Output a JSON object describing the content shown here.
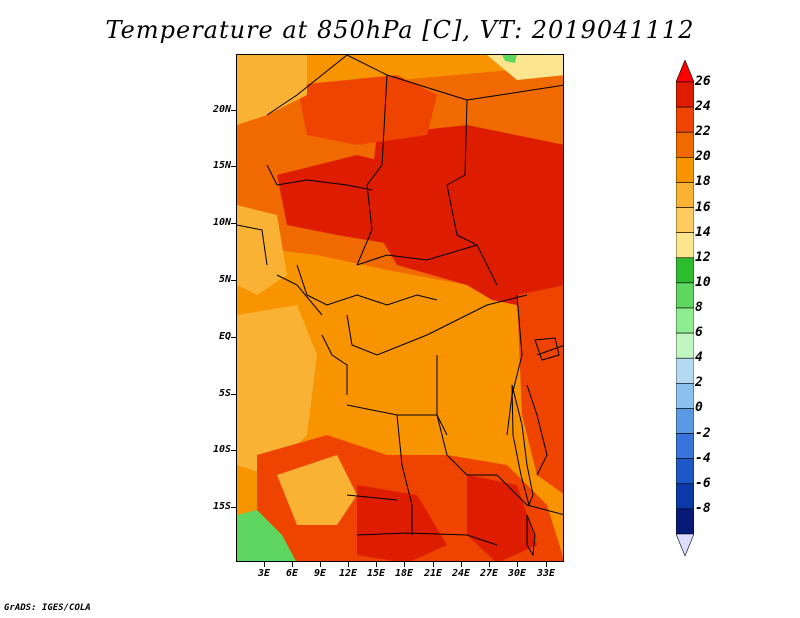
{
  "title": "Temperature at 850hPa [C], VT: 2019041112",
  "credit": "GrADS: IGES/COLA",
  "latitude_labels": [
    "20N",
    "15N",
    "10N",
    "5N",
    "EQ",
    "5S",
    "10S",
    "15S"
  ],
  "longitude_labels": [
    "3E",
    "6E",
    "9E",
    "12E",
    "15E",
    "18E",
    "21E",
    "24E",
    "27E",
    "30E",
    "33E"
  ],
  "colorbar": {
    "labels": [
      "26",
      "24",
      "22",
      "20",
      "18",
      "16",
      "14",
      "12",
      "10",
      "8",
      "6",
      "4",
      "2",
      "0",
      "-2",
      "-4",
      "-6",
      "-8"
    ],
    "colors": [
      "#ff0000",
      "#dd1c00",
      "#ee4400",
      "#f06a00",
      "#f79400",
      "#fab234",
      "#fccc60",
      "#fde590",
      "#2dbc2d",
      "#5fd65f",
      "#90ec90",
      "#c0f7c0",
      "#b4daf2",
      "#8cc0ee",
      "#5a9ae4",
      "#3874dc",
      "#1e58c8",
      "#0b3aa8",
      "#081a78",
      "#dcdcff"
    ]
  },
  "colors": {
    "deep_red": "#dd1c00",
    "red": "#ee4400",
    "orange_red": "#f06a00",
    "orange": "#f79400",
    "light_orange": "#fab234",
    "pale_orange": "#fccc60",
    "yellow": "#fde590",
    "green": "#5fd65f"
  }
}
